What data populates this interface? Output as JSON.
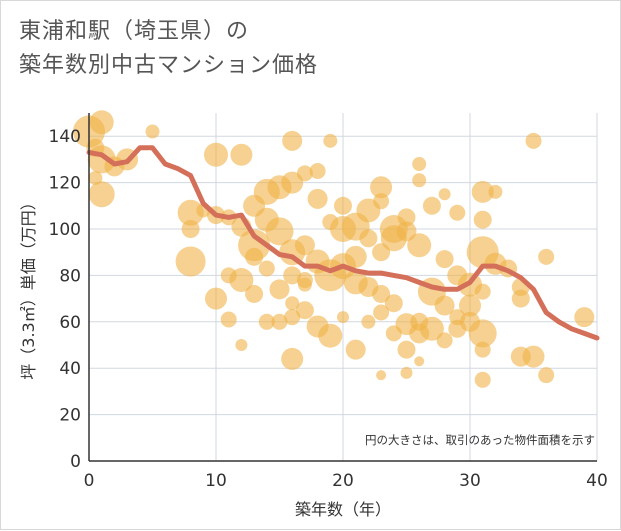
{
  "chart_data": {
    "type": "scatter",
    "title_lines": [
      "東浦和駅（埼玉県）の",
      "築年数別中古マンション価格"
    ],
    "xlabel": "築年数（年）",
    "ylabel": "坪（3.3㎡）単価（万円）",
    "note": "円の大きさは、取引のあった物件面積を示す",
    "xlim": [
      0,
      40
    ],
    "ylim": [
      0,
      150
    ],
    "xticks": [
      0,
      10,
      20,
      30,
      40
    ],
    "yticks": [
      0,
      20,
      40,
      60,
      80,
      100,
      120,
      140
    ],
    "grid": true,
    "colors": {
      "bubble": "#f0b348",
      "line": "#d4705a",
      "grid": "#d0d8e0",
      "axis": "#333333"
    },
    "series": [
      {
        "type": "line",
        "x": [
          0,
          1,
          2,
          3,
          4,
          5,
          6,
          7,
          8,
          9,
          10,
          11,
          12,
          13,
          14,
          15,
          16,
          17,
          18,
          19,
          20,
          21,
          22,
          23,
          24,
          25,
          26,
          27,
          28,
          29,
          30,
          31,
          32,
          33,
          34,
          35,
          36,
          37,
          38,
          39,
          40
        ],
        "values": [
          133,
          132,
          128,
          129,
          135,
          135,
          128,
          126,
          123,
          111,
          106,
          105,
          106,
          97,
          93,
          89,
          88,
          84,
          84,
          82,
          84,
          82,
          81,
          81,
          80,
          79,
          77,
          75,
          74,
          74,
          77,
          84,
          84,
          82,
          79,
          74,
          64,
          60,
          57,
          55,
          53
        ]
      },
      {
        "type": "scatter",
        "points": [
          [
            0,
            142,
            16
          ],
          [
            1,
            146,
            12
          ],
          [
            0.5,
            135,
            9
          ],
          [
            1,
            130,
            14
          ],
          [
            2,
            127,
            10
          ],
          [
            3,
            130,
            11
          ],
          [
            1,
            115,
            13
          ],
          [
            0.5,
            122,
            7
          ],
          [
            5,
            142,
            7
          ],
          [
            10,
            132,
            12
          ],
          [
            12,
            132,
            11
          ],
          [
            16,
            138,
            10
          ],
          [
            17,
            124,
            8
          ],
          [
            19,
            138,
            7
          ],
          [
            18,
            125,
            8
          ],
          [
            8,
            107,
            13
          ],
          [
            8,
            100,
            9
          ],
          [
            10,
            106,
            9
          ],
          [
            11,
            105,
            8
          ],
          [
            12,
            101,
            10
          ],
          [
            9,
            108,
            7
          ],
          [
            8,
            86,
            15
          ],
          [
            10,
            70,
            11
          ],
          [
            11,
            80,
            8
          ],
          [
            12,
            78,
            12
          ],
          [
            13,
            88,
            9
          ],
          [
            14,
            83,
            8
          ],
          [
            13,
            72,
            9
          ],
          [
            11,
            61,
            8
          ],
          [
            14,
            60,
            8
          ],
          [
            12,
            50,
            6
          ],
          [
            13,
            110,
            11
          ],
          [
            14,
            116,
            13
          ],
          [
            15,
            118,
            12
          ],
          [
            16,
            120,
            11
          ],
          [
            14,
            104,
            12
          ],
          [
            15,
            99,
            14
          ],
          [
            13,
            93,
            16
          ],
          [
            16,
            90,
            13
          ],
          [
            17,
            93,
            10
          ],
          [
            18,
            86,
            12
          ],
          [
            16,
            80,
            9
          ],
          [
            17,
            78,
            8
          ],
          [
            15,
            74,
            10
          ],
          [
            16,
            68,
            7
          ],
          [
            17,
            65,
            9
          ],
          [
            16,
            62,
            8
          ],
          [
            18,
            58,
            11
          ],
          [
            19,
            54,
            12
          ],
          [
            16,
            44,
            11
          ],
          [
            17,
            76,
            7
          ],
          [
            15,
            60,
            8
          ],
          [
            18,
            113,
            10
          ],
          [
            19,
            103,
            8
          ],
          [
            20,
            110,
            9
          ],
          [
            20,
            100,
            13
          ],
          [
            21,
            101,
            14
          ],
          [
            22,
            108,
            12
          ],
          [
            23,
            118,
            11
          ],
          [
            23,
            112,
            8
          ],
          [
            22,
            96,
            9
          ],
          [
            24,
            96,
            13
          ],
          [
            25,
            99,
            10
          ],
          [
            23,
            90,
            9
          ],
          [
            21,
            88,
            11
          ],
          [
            20,
            84,
            13
          ],
          [
            19,
            80,
            16
          ],
          [
            21,
            77,
            12
          ],
          [
            22,
            75,
            10
          ],
          [
            23,
            72,
            9
          ],
          [
            24,
            68,
            9
          ],
          [
            23,
            64,
            8
          ],
          [
            22,
            60,
            7
          ],
          [
            20,
            62,
            6
          ],
          [
            21,
            48,
            10
          ],
          [
            25,
            59,
            11
          ],
          [
            24,
            55,
            8
          ],
          [
            26,
            60,
            9
          ],
          [
            25,
            48,
            9
          ],
          [
            26,
            55,
            10
          ],
          [
            27,
            57,
            12
          ],
          [
            28,
            52,
            8
          ],
          [
            27,
            73,
            14
          ],
          [
            28,
            67,
            10
          ],
          [
            29,
            62,
            8
          ],
          [
            26,
            121,
            7
          ],
          [
            27,
            110,
            9
          ],
          [
            26,
            128,
            7
          ],
          [
            28,
            115,
            6
          ],
          [
            29,
            107,
            8
          ],
          [
            25,
            105,
            9
          ],
          [
            26,
            93,
            12
          ],
          [
            28,
            87,
            9
          ],
          [
            29,
            80,
            10
          ],
          [
            30,
            76,
            12
          ],
          [
            30,
            67,
            11
          ],
          [
            29,
            57,
            9
          ],
          [
            30,
            60,
            10
          ],
          [
            31,
            55,
            14
          ],
          [
            31,
            48,
            8
          ],
          [
            31,
            35,
            8
          ],
          [
            23,
            37,
            5
          ],
          [
            25,
            38,
            6
          ],
          [
            26,
            43,
            5
          ],
          [
            31,
            116,
            11
          ],
          [
            32,
            116,
            7
          ],
          [
            31,
            104,
            9
          ],
          [
            31,
            90,
            16
          ],
          [
            32,
            85,
            11
          ],
          [
            33,
            83,
            9
          ],
          [
            31,
            73,
            8
          ],
          [
            34,
            75,
            9
          ],
          [
            34,
            70,
            9
          ],
          [
            34,
            45,
            10
          ],
          [
            35,
            45,
            11
          ],
          [
            35,
            138,
            8
          ],
          [
            36,
            88,
            8
          ],
          [
            36,
            37,
            8
          ],
          [
            39,
            62,
            10
          ],
          [
            24,
            100,
            14
          ]
        ]
      }
    ]
  }
}
